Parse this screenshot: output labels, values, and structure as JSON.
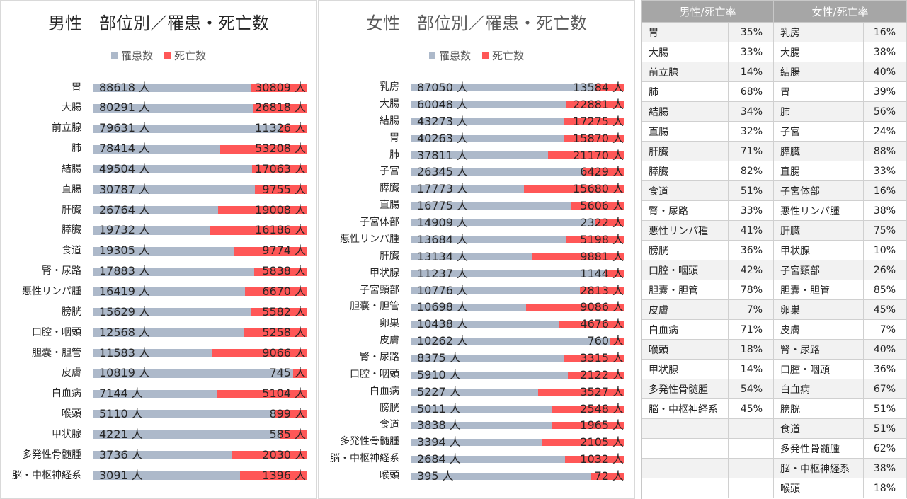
{
  "chart_data": [
    {
      "type": "bar",
      "orientation": "horizontal",
      "stacking": "100%",
      "legend": "top",
      "grid": false,
      "title": "男性　部位別／罹患・死亡数",
      "unit": "人",
      "categories": [
        "胃",
        "大腸",
        "前立腺",
        "肺",
        "結腸",
        "直腸",
        "肝臓",
        "膵臓",
        "食道",
        "腎・尿路",
        "悪性リンパ腫",
        "膀胱",
        "口腔・咽頭",
        "胆嚢・胆管",
        "皮膚",
        "白血病",
        "喉頭",
        "甲状腺",
        "多発性骨髄腫",
        "脳・中枢神経系"
      ],
      "series": [
        {
          "name": "罹患数",
          "color": "#adb9ca",
          "values": [
            88618,
            80291,
            79631,
            78414,
            49504,
            30787,
            26764,
            19732,
            19305,
            17883,
            16419,
            15629,
            12568,
            11583,
            10819,
            7144,
            5110,
            4221,
            3736,
            3091
          ]
        },
        {
          "name": "死亡数",
          "color": "#ff5757",
          "values": [
            30809,
            26818,
            11326,
            53208,
            17063,
            9755,
            19008,
            16186,
            9774,
            5838,
            6670,
            5582,
            5258,
            9066,
            745,
            5104,
            899,
            585,
            2030,
            1396
          ]
        }
      ]
    },
    {
      "type": "bar",
      "orientation": "horizontal",
      "stacking": "100%",
      "legend": "top",
      "grid": false,
      "title": "女性　部位別／罹患・死亡数",
      "unit": "人",
      "categories": [
        "乳房",
        "大腸",
        "結腸",
        "胃",
        "肺",
        "子宮",
        "膵臓",
        "直腸",
        "子宮体部",
        "悪性リンパ腫",
        "肝臓",
        "甲状腺",
        "子宮頸部",
        "胆嚢・胆管",
        "卵巣",
        "皮膚",
        "腎・尿路",
        "口腔・咽頭",
        "白血病",
        "膀胱",
        "食道",
        "多発性骨髄腫",
        "脳・中枢神経系",
        "喉頭"
      ],
      "series": [
        {
          "name": "罹患数",
          "color": "#adb9ca",
          "values": [
            87050,
            60048,
            43273,
            40263,
            37811,
            26345,
            17773,
            16775,
            14909,
            13684,
            13134,
            11237,
            10776,
            10698,
            10438,
            10262,
            8375,
            5910,
            5227,
            5011,
            3838,
            3394,
            2684,
            395
          ]
        },
        {
          "name": "死亡数",
          "color": "#ff5757",
          "values": [
            13584,
            22881,
            17275,
            15870,
            21170,
            6429,
            15680,
            5606,
            2322,
            5198,
            9881,
            1144,
            2813,
            9086,
            4676,
            760,
            3315,
            2122,
            3527,
            2548,
            1965,
            2105,
            1032,
            72
          ]
        }
      ]
    }
  ],
  "table": {
    "headers": [
      "男性/死亡率",
      "女性/死亡率"
    ],
    "header_color": "#a6a6a6",
    "band_color": "#f2f2f2",
    "male": [
      {
        "site": "胃",
        "rate": "35%"
      },
      {
        "site": "大腸",
        "rate": "33%"
      },
      {
        "site": "前立腺",
        "rate": "14%"
      },
      {
        "site": "肺",
        "rate": "68%"
      },
      {
        "site": "結腸",
        "rate": "34%"
      },
      {
        "site": "直腸",
        "rate": "32%"
      },
      {
        "site": "肝臓",
        "rate": "71%"
      },
      {
        "site": "膵臓",
        "rate": "82%"
      },
      {
        "site": "食道",
        "rate": "51%"
      },
      {
        "site": "腎・尿路",
        "rate": "33%"
      },
      {
        "site": "悪性リンパ種",
        "rate": "41%"
      },
      {
        "site": "膀胱",
        "rate": "36%"
      },
      {
        "site": "口腔・咽頭",
        "rate": "42%"
      },
      {
        "site": "胆嚢・胆管",
        "rate": "78%"
      },
      {
        "site": "皮膚",
        "rate": "7%"
      },
      {
        "site": "白血病",
        "rate": "71%"
      },
      {
        "site": "喉頭",
        "rate": "18%"
      },
      {
        "site": "甲状腺",
        "rate": "14%"
      },
      {
        "site": "多発性骨髄腫",
        "rate": "54%"
      },
      {
        "site": "脳・中枢神経系",
        "rate": "45%"
      }
    ],
    "female": [
      {
        "site": "乳房",
        "rate": "16%"
      },
      {
        "site": "大腸",
        "rate": "38%"
      },
      {
        "site": "結腸",
        "rate": "40%"
      },
      {
        "site": "胃",
        "rate": "39%"
      },
      {
        "site": "肺",
        "rate": "56%"
      },
      {
        "site": "子宮",
        "rate": "24%"
      },
      {
        "site": "膵臓",
        "rate": "88%"
      },
      {
        "site": "直腸",
        "rate": "33%"
      },
      {
        "site": "子宮体部",
        "rate": "16%"
      },
      {
        "site": "悪性リンパ腫",
        "rate": "38%"
      },
      {
        "site": "肝臓",
        "rate": "75%"
      },
      {
        "site": "甲状腺",
        "rate": "10%"
      },
      {
        "site": "子宮頸部",
        "rate": "26%"
      },
      {
        "site": "胆嚢・胆管",
        "rate": "85%"
      },
      {
        "site": "卵巣",
        "rate": "45%"
      },
      {
        "site": "皮膚",
        "rate": "7%"
      },
      {
        "site": "腎・尿路",
        "rate": "40%"
      },
      {
        "site": "口腔・咽頭",
        "rate": "36%"
      },
      {
        "site": "白血病",
        "rate": "67%"
      },
      {
        "site": "膀胱",
        "rate": "51%"
      },
      {
        "site": "食道",
        "rate": "51%"
      },
      {
        "site": "多発性骨髄腫",
        "rate": "62%"
      },
      {
        "site": "脳・中枢神経系",
        "rate": "38%"
      },
      {
        "site": "喉頭",
        "rate": "18%"
      }
    ]
  }
}
